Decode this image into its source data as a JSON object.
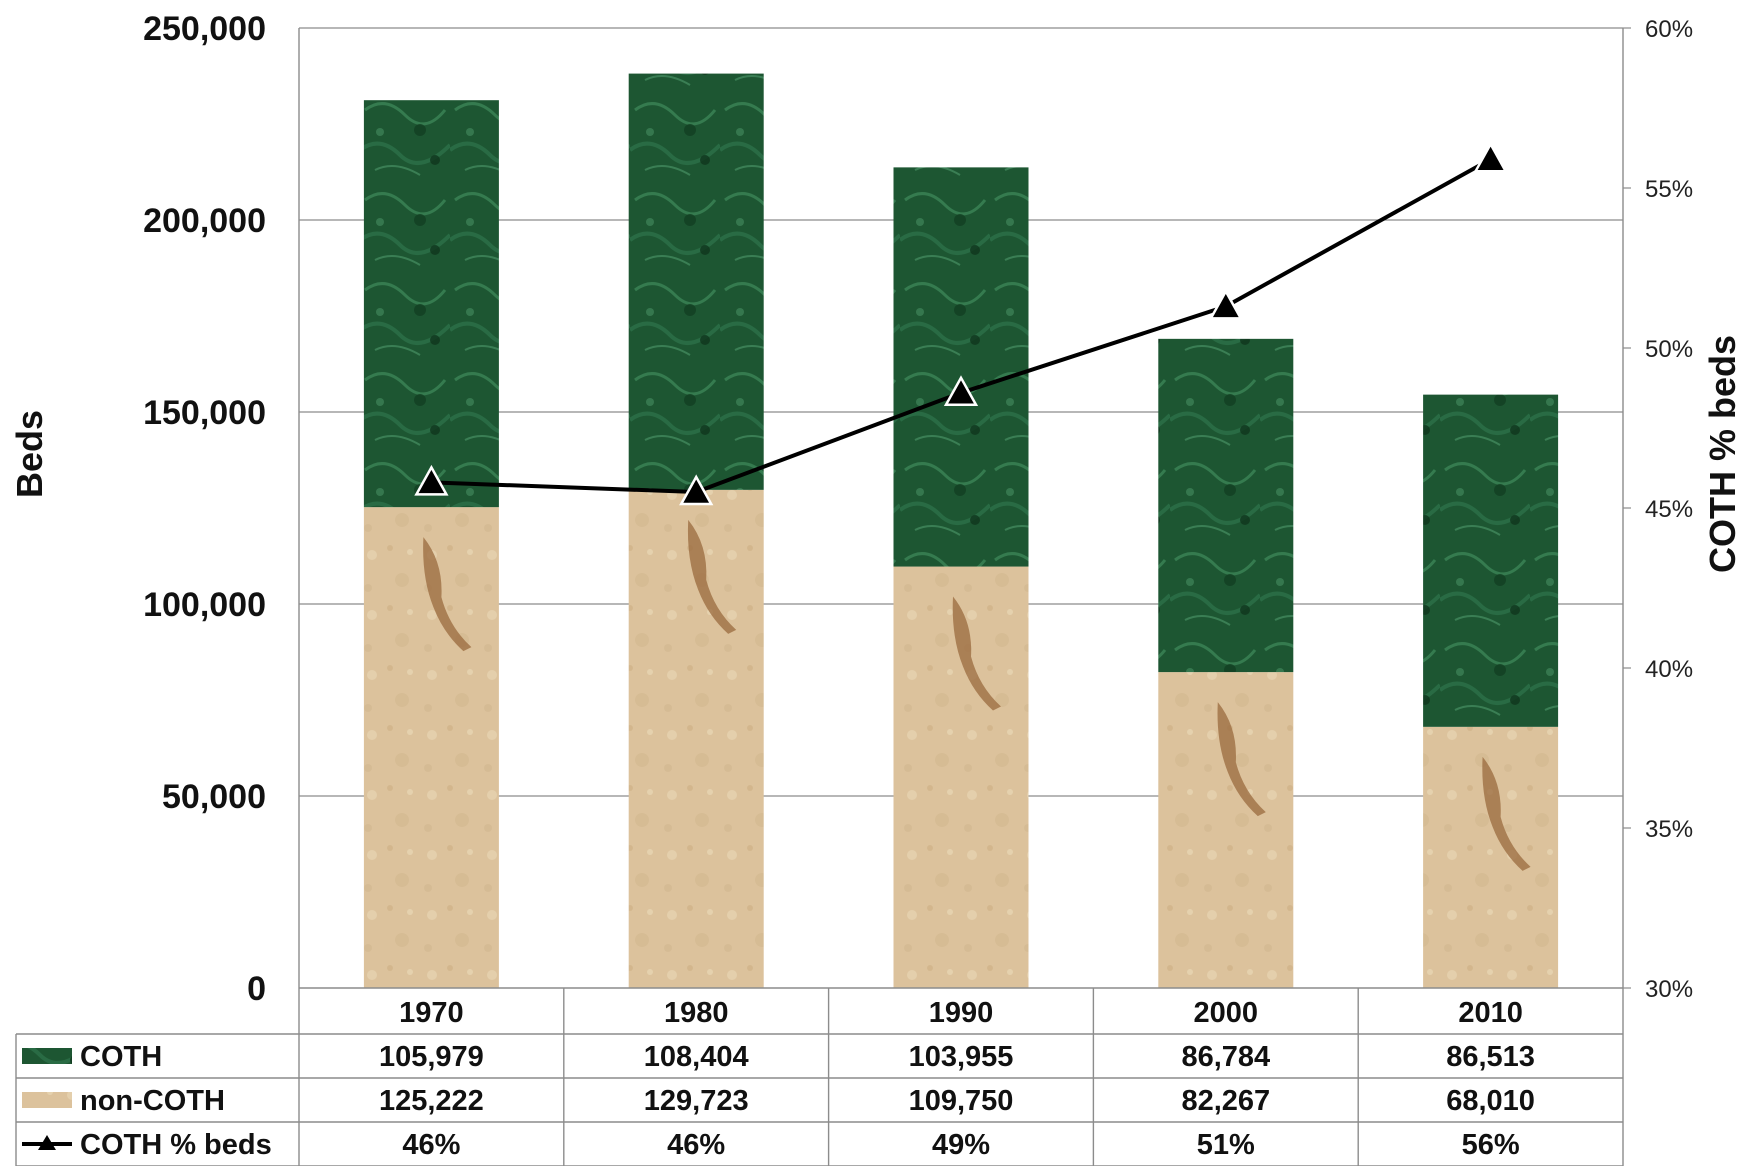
{
  "chart_data": {
    "type": "bar",
    "stacked": true,
    "categories": [
      "1970",
      "1980",
      "1990",
      "2000",
      "2010"
    ],
    "series": [
      {
        "name": "non-COTH",
        "axis": "left",
        "kind": "bar",
        "values": [
          125222,
          129723,
          109750,
          82267,
          68010
        ],
        "color": "#dcc29a"
      },
      {
        "name": "COTH",
        "axis": "left",
        "kind": "bar",
        "values": [
          105979,
          108404,
          103955,
          86784,
          86513
        ],
        "color": "#1e5a34"
      },
      {
        "name": "COTH % beds",
        "axis": "right",
        "kind": "line",
        "marker": "triangle",
        "values": [
          45.8,
          45.5,
          48.6,
          51.3,
          55.9
        ],
        "color": "#000000"
      }
    ],
    "ylabel": "Beds",
    "ylabel_right": "COTH % beds",
    "ylim": [
      0,
      250000
    ],
    "ylim_right": [
      30,
      60
    ],
    "yticks": [
      "0",
      "50,000",
      "100,000",
      "150,000",
      "200,000",
      "250,000"
    ],
    "yticks_right": [
      "30%",
      "35%",
      "40%",
      "45%",
      "50%",
      "55%",
      "60%"
    ],
    "grid": true,
    "data_table": {
      "rows": [
        {
          "label": "COTH",
          "values": [
            "105,979",
            "108,404",
            "103,955",
            "86,784",
            "86,513"
          ]
        },
        {
          "label": "non-COTH",
          "values": [
            "125,222",
            "129,723",
            "109,750",
            "82,267",
            "68,010"
          ]
        },
        {
          "label": "COTH % beds",
          "values": [
            "46%",
            "46%",
            "49%",
            "51%",
            "56%"
          ]
        }
      ]
    }
  }
}
